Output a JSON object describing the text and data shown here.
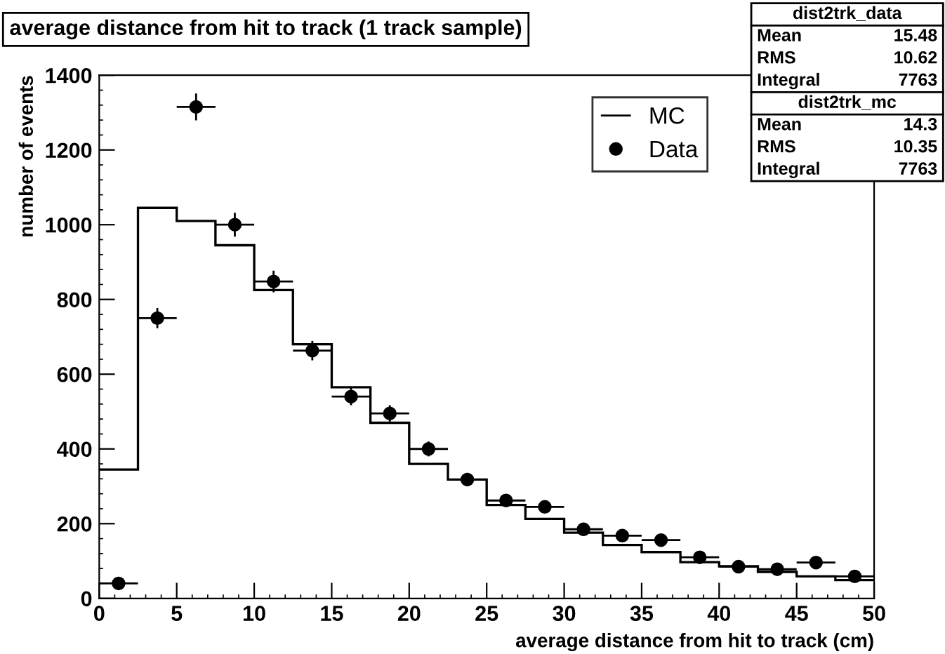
{
  "chart_data": {
    "type": "histogram",
    "title": "average distance from hit to track (1 track sample)",
    "xlabel": "average distance from hit to track (cm)",
    "ylabel": "number of events",
    "bins": [
      0,
      2.5,
      5,
      7.5,
      10,
      12.5,
      15,
      17.5,
      20,
      22.5,
      25,
      27.5,
      30,
      32.5,
      35,
      37.5,
      40,
      42.5,
      45,
      47.5,
      50
    ],
    "series": [
      {
        "name": "MC",
        "color": "#000000",
        "values": [
          345,
          1045,
          1010,
          945,
          825,
          680,
          565,
          470,
          360,
          318,
          250,
          213,
          176,
          143,
          124,
          97,
          86,
          71,
          59,
          49
        ]
      },
      {
        "name": "Data",
        "type": "scatter",
        "color": "#000000",
        "marker": "circle",
        "x": [
          1.25,
          3.75,
          6.25,
          8.75,
          11.25,
          13.75,
          16.25,
          18.75,
          21.25,
          23.75,
          26.25,
          28.75,
          31.25,
          33.75,
          36.25,
          38.75,
          41.25,
          43.75,
          46.25,
          48.75
        ],
        "values": [
          40,
          750,
          1315,
          1000,
          848,
          663,
          540,
          495,
          400,
          318,
          262,
          245,
          185,
          168,
          156,
          110,
          85,
          78,
          96,
          59
        ],
        "errors": [
          6,
          27,
          36,
          32,
          29,
          26,
          23,
          22,
          20,
          18,
          16,
          16,
          14,
          13,
          12,
          10,
          9,
          9,
          10,
          8
        ],
        "xerrors": [
          1.25,
          1.25,
          1.25,
          1.25,
          1.25,
          1.25,
          1.25,
          1.25,
          1.25,
          1.25,
          1.25,
          1.25,
          1.25,
          1.25,
          1.25,
          1.25,
          1.25,
          1.25,
          1.25,
          1.25
        ]
      }
    ],
    "xlim": [
      0,
      50
    ],
    "xticks": [
      0,
      5,
      10,
      15,
      20,
      25,
      30,
      35,
      40,
      45,
      50
    ],
    "ylim": [
      0,
      1400
    ],
    "yticks": [
      0,
      200,
      400,
      600,
      800,
      1000,
      1200,
      1400
    ],
    "legend": "top right",
    "grid": false,
    "annotations": [
      "dist2trk_data",
      "Mean",
      "15.48",
      "RMS",
      "10.62",
      "Integral",
      "7763",
      "dist2trk_mc",
      "Mean",
      "14.3",
      "RMS",
      "10.35",
      "Integral",
      "7763"
    ]
  }
}
